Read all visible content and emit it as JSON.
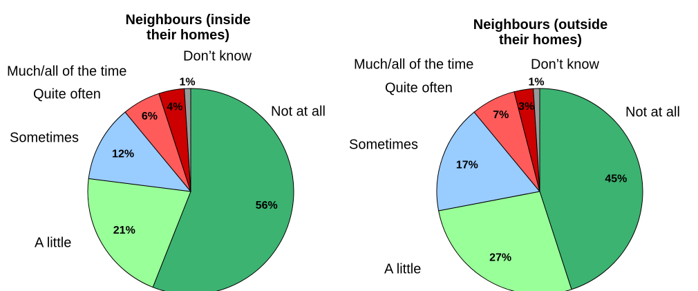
{
  "chart_data": [
    {
      "type": "pie",
      "title": "Neighbours (inside their homes)",
      "categories": [
        "Not at all",
        "A little",
        "Sometimes",
        "Quite often",
        "Much/all of the time",
        "Don’t know"
      ],
      "values": [
        56,
        21,
        12,
        6,
        4,
        1
      ],
      "value_labels": [
        "56%",
        "21%",
        "12%",
        "6%",
        "4%",
        "1%"
      ],
      "colors": [
        "#3cb371",
        "#99ff99",
        "#99ccff",
        "#ff5b5b",
        "#cc0000",
        "#999999"
      ]
    },
    {
      "type": "pie",
      "title": "Neighbours (outside their homes)",
      "categories": [
        "Not at all",
        "A little",
        "Sometimes",
        "Quite often",
        "Much/all of the time",
        "Don’t know"
      ],
      "values": [
        45,
        27,
        17,
        7,
        3,
        1
      ],
      "value_labels": [
        "45%",
        "27%",
        "17%",
        "7%",
        "3%",
        "1%"
      ],
      "colors": [
        "#3cb371",
        "#99ff99",
        "#99ccff",
        "#ff5b5b",
        "#cc0000",
        "#999999"
      ]
    }
  ]
}
